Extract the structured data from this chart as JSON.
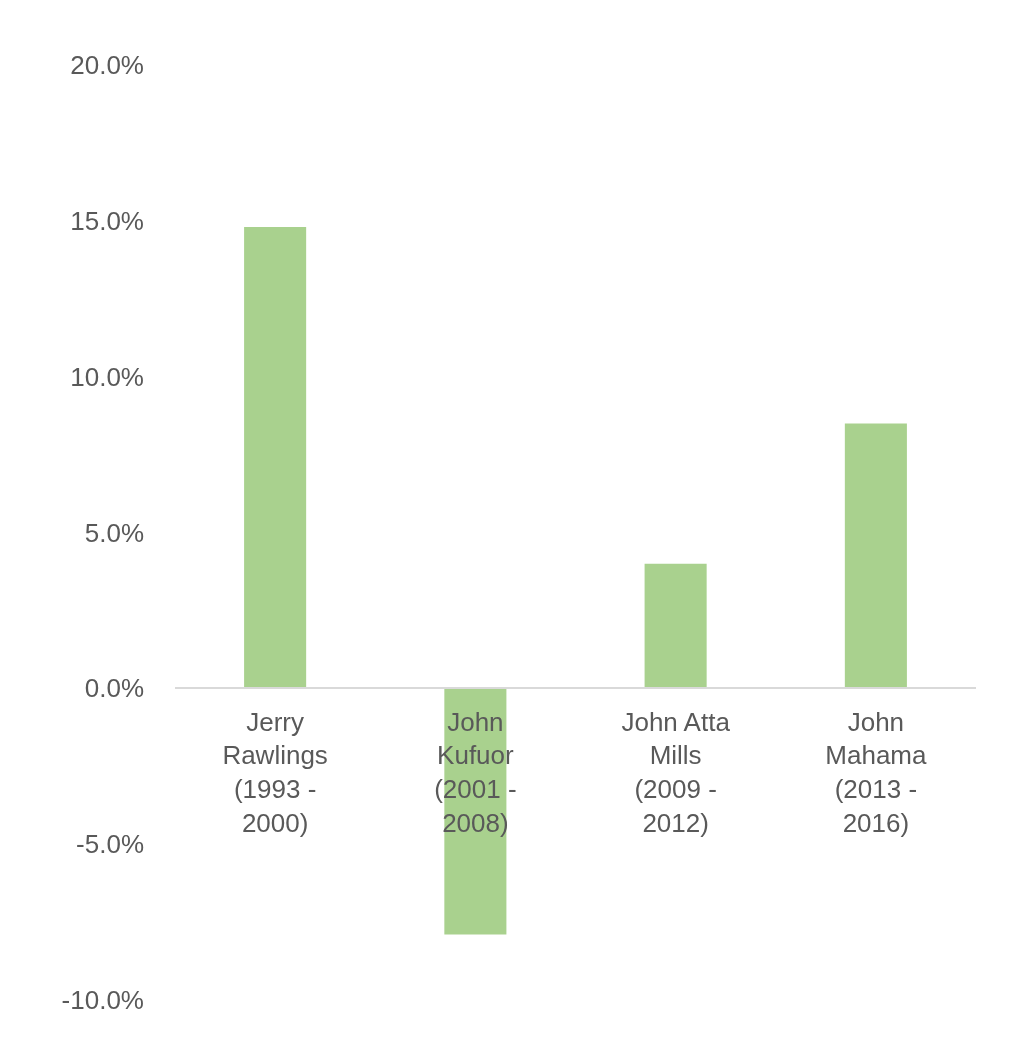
{
  "chart_data": {
    "type": "bar",
    "categories": [
      "Jerry Rawlings (1993 - 2000)",
      "John Kufuor (2001 - 2008)",
      "John Atta Mills (2009 - 2012)",
      "John Mahama (2013 - 2016)"
    ],
    "values": [
      14.8,
      -7.9,
      4.0,
      8.5
    ],
    "color": "#a9d18e",
    "ylim": [
      -10,
      20
    ],
    "yticks": [
      {
        "value": -10,
        "label": "-10.0%"
      },
      {
        "value": -5,
        "label": "-5.0%"
      },
      {
        "value": 0,
        "label": "0.0%"
      },
      {
        "value": 5,
        "label": "5.0%"
      },
      {
        "value": 10,
        "label": "10.0%"
      },
      {
        "value": 15,
        "label": "15.0%"
      },
      {
        "value": 20,
        "label": "20.0%"
      }
    ],
    "legend": false
  }
}
